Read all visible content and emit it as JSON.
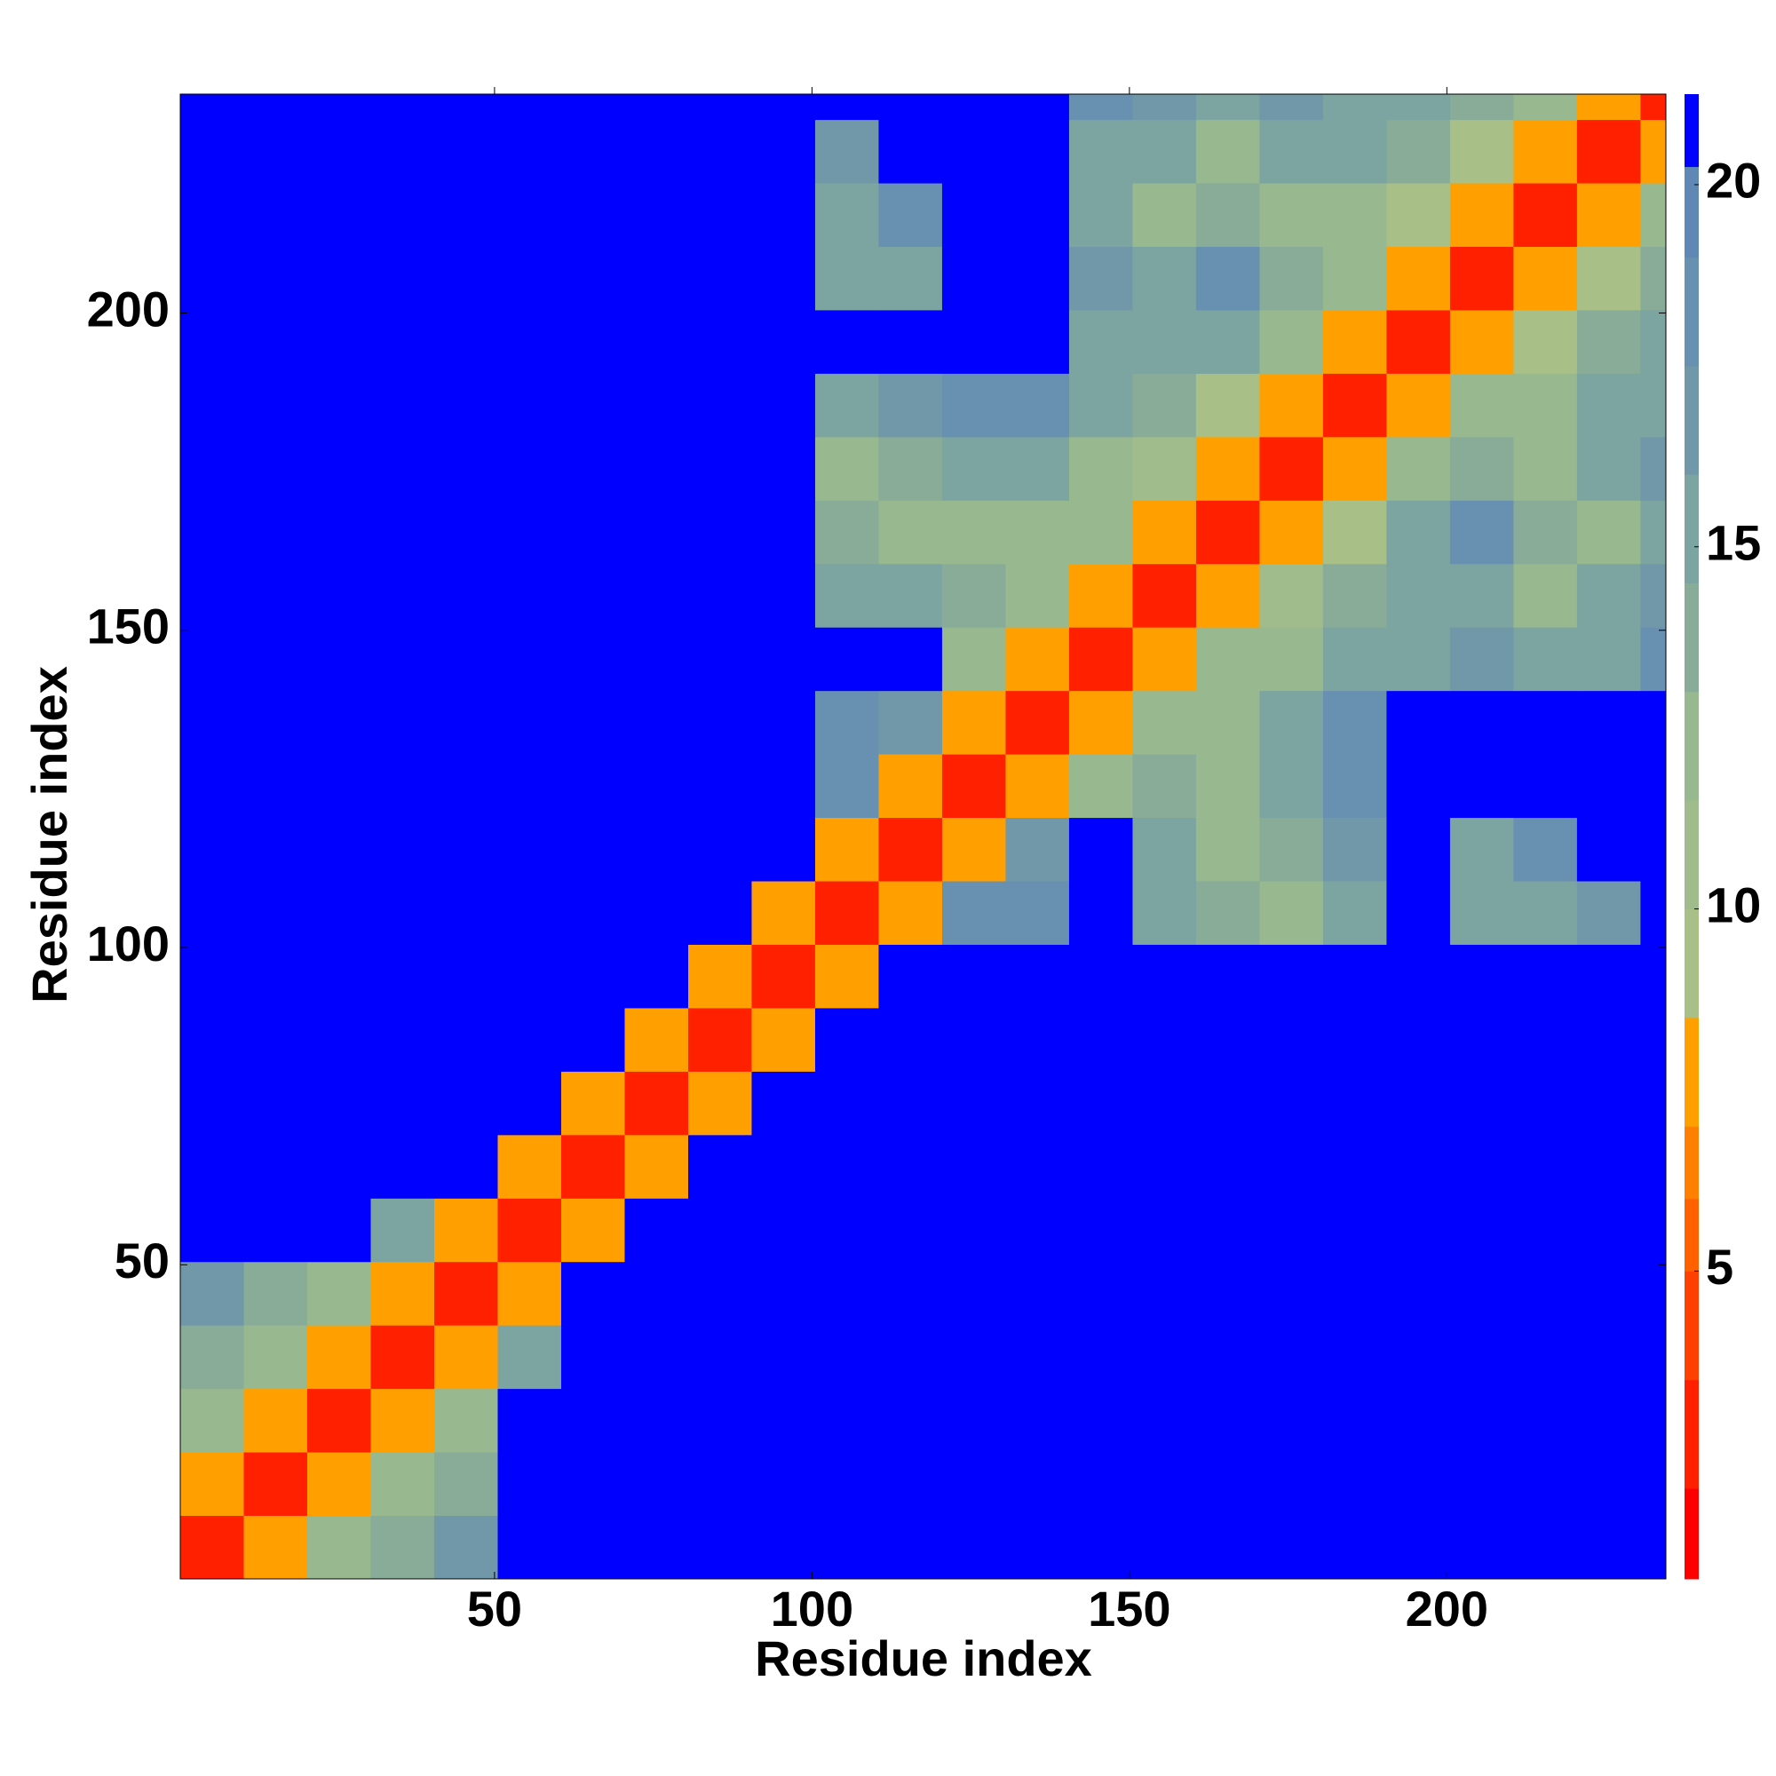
{
  "chart_data": {
    "type": "heatmap",
    "x_label": "Residue index",
    "y_label": "Residue index",
    "xlim": [
      0.5,
      234.5
    ],
    "ylim": [
      0.5,
      234.5
    ],
    "xticks": [
      50,
      100,
      150,
      200
    ],
    "yticks": [
      50,
      100,
      150,
      200
    ],
    "xbins": [
      0.5,
      10.5,
      20.5,
      30.5,
      40.5,
      50.5,
      60.5,
      70.5,
      80.5,
      90.5,
      100.5,
      110.5,
      120.5,
      130.5,
      140.5,
      150.5,
      160.5,
      170.5,
      180.5,
      190.5,
      200.5,
      210.5,
      220.5,
      230.5,
      234.5
    ],
    "ybins": [
      0.5,
      10.5,
      20.5,
      30.5,
      40.5,
      50.5,
      60.5,
      70.5,
      80.5,
      90.5,
      100.5,
      110.5,
      120.5,
      130.5,
      140.5,
      150.5,
      160.5,
      170.5,
      180.5,
      190.5,
      200.5,
      210.5,
      220.5,
      230.5,
      234.5
    ],
    "z": [
      [
        3,
        8,
        12,
        14,
        17,
        21,
        21,
        21,
        21,
        21,
        21,
        21,
        21,
        21,
        21,
        21,
        21,
        21,
        21,
        21,
        21,
        21,
        21,
        21
      ],
      [
        8,
        3,
        8,
        12,
        14,
        21,
        21,
        21,
        21,
        21,
        21,
        21,
        21,
        21,
        21,
        21,
        21,
        21,
        21,
        21,
        21,
        21,
        21,
        21
      ],
      [
        12,
        8,
        3,
        8,
        12,
        21,
        21,
        21,
        21,
        21,
        21,
        21,
        21,
        21,
        21,
        21,
        21,
        21,
        21,
        21,
        21,
        21,
        21,
        21
      ],
      [
        14,
        12,
        8,
        3,
        8,
        16,
        21,
        21,
        21,
        21,
        21,
        21,
        21,
        21,
        21,
        21,
        21,
        21,
        21,
        21,
        21,
        21,
        21,
        21
      ],
      [
        17,
        14,
        12,
        8,
        3,
        8,
        21,
        21,
        21,
        21,
        21,
        21,
        21,
        21,
        21,
        21,
        21,
        21,
        21,
        21,
        21,
        21,
        21,
        21
      ],
      [
        21,
        21,
        21,
        16,
        8,
        3,
        8,
        21,
        21,
        21,
        21,
        21,
        21,
        21,
        21,
        21,
        21,
        21,
        21,
        21,
        21,
        21,
        21,
        21
      ],
      [
        21,
        21,
        21,
        21,
        21,
        8,
        3,
        8,
        21,
        21,
        21,
        21,
        21,
        21,
        21,
        21,
        21,
        21,
        21,
        21,
        21,
        21,
        21,
        21
      ],
      [
        21,
        21,
        21,
        21,
        21,
        21,
        8,
        3,
        8,
        21,
        21,
        21,
        21,
        21,
        21,
        21,
        21,
        21,
        21,
        21,
        21,
        21,
        21,
        21
      ],
      [
        21,
        21,
        21,
        21,
        21,
        21,
        21,
        8,
        3,
        8,
        21,
        21,
        21,
        21,
        21,
        21,
        21,
        21,
        21,
        21,
        21,
        21,
        21,
        21
      ],
      [
        21,
        21,
        21,
        21,
        21,
        21,
        21,
        21,
        8,
        3,
        8,
        21,
        21,
        21,
        21,
        21,
        21,
        21,
        21,
        21,
        21,
        21,
        21,
        21
      ],
      [
        21,
        21,
        21,
        21,
        21,
        21,
        21,
        21,
        21,
        8,
        3,
        8,
        18,
        19,
        21,
        16,
        14,
        13,
        16,
        21,
        15,
        15,
        17,
        21
      ],
      [
        21,
        21,
        21,
        21,
        21,
        21,
        21,
        21,
        21,
        21,
        8,
        3,
        8,
        17,
        21,
        15,
        13,
        14,
        17,
        21,
        16,
        18,
        21,
        21
      ],
      [
        21,
        21,
        21,
        21,
        21,
        21,
        21,
        21,
        21,
        21,
        18,
        8,
        3,
        8,
        13,
        14,
        12,
        15,
        19,
        21,
        21,
        21,
        21,
        21
      ],
      [
        21,
        21,
        21,
        21,
        21,
        21,
        21,
        21,
        21,
        21,
        19,
        17,
        8,
        3,
        8,
        13,
        12,
        16,
        18,
        21,
        21,
        21,
        21,
        21
      ],
      [
        21,
        21,
        21,
        21,
        21,
        21,
        21,
        21,
        21,
        21,
        21,
        21,
        13,
        8,
        3,
        8,
        12,
        13,
        15,
        16,
        17,
        16,
        15,
        18
      ],
      [
        21,
        21,
        21,
        21,
        21,
        21,
        21,
        21,
        21,
        21,
        16,
        15,
        14,
        13,
        8,
        3,
        8,
        11,
        14,
        15,
        16,
        13,
        15,
        17
      ],
      [
        21,
        21,
        21,
        21,
        21,
        21,
        21,
        21,
        21,
        21,
        14,
        13,
        12,
        12,
        12,
        8,
        3,
        8,
        9,
        15,
        18,
        14,
        13,
        16
      ],
      [
        21,
        21,
        21,
        21,
        21,
        21,
        21,
        21,
        21,
        21,
        13,
        14,
        15,
        16,
        13,
        11,
        8,
        3,
        8,
        12,
        14,
        12,
        15,
        17
      ],
      [
        21,
        21,
        21,
        21,
        21,
        21,
        21,
        21,
        21,
        21,
        16,
        17,
        19,
        18,
        15,
        14,
        9,
        8,
        3,
        8,
        12,
        13,
        16,
        15
      ],
      [
        21,
        21,
        21,
        21,
        21,
        21,
        21,
        21,
        21,
        21,
        21,
        21,
        21,
        21,
        16,
        15,
        15,
        12,
        8,
        3,
        8,
        9,
        14,
        15
      ],
      [
        21,
        21,
        21,
        21,
        21,
        21,
        21,
        21,
        21,
        21,
        15,
        16,
        21,
        21,
        17,
        16,
        18,
        14,
        12,
        8,
        3,
        8,
        9,
        14
      ],
      [
        21,
        21,
        21,
        21,
        21,
        21,
        21,
        21,
        21,
        21,
        15,
        18,
        21,
        21,
        16,
        13,
        14,
        12,
        13,
        9,
        8,
        3,
        8,
        12
      ],
      [
        21,
        21,
        21,
        21,
        21,
        21,
        21,
        21,
        21,
        21,
        17,
        21,
        21,
        21,
        15,
        15,
        13,
        15,
        16,
        14,
        9,
        8,
        3,
        8
      ],
      [
        21,
        21,
        21,
        21,
        21,
        21,
        21,
        21,
        21,
        21,
        21,
        21,
        21,
        21,
        18,
        17,
        16,
        17,
        15,
        15,
        14,
        12,
        8,
        3
      ]
    ],
    "clim": [
      0.75,
      21.25
    ],
    "cticks": [
      5,
      10,
      15,
      20
    ],
    "levels": [
      0.75,
      2,
      3.5,
      5,
      6,
      7,
      8.5,
      10,
      11.5,
      13,
      14.5,
      16,
      17.5,
      19,
      20.25,
      21.25
    ],
    "colors": [
      "#ff0000",
      "#ff2000",
      "#ff4000",
      "#ff6000",
      "#ff8000",
      "#ffa000",
      "#a8c088",
      "#a0bc8c",
      "#98b890",
      "#88ac98",
      "#7ca4a0",
      "#7098a8",
      "#6890b0",
      "#6088b4",
      "#0000ff"
    ]
  }
}
